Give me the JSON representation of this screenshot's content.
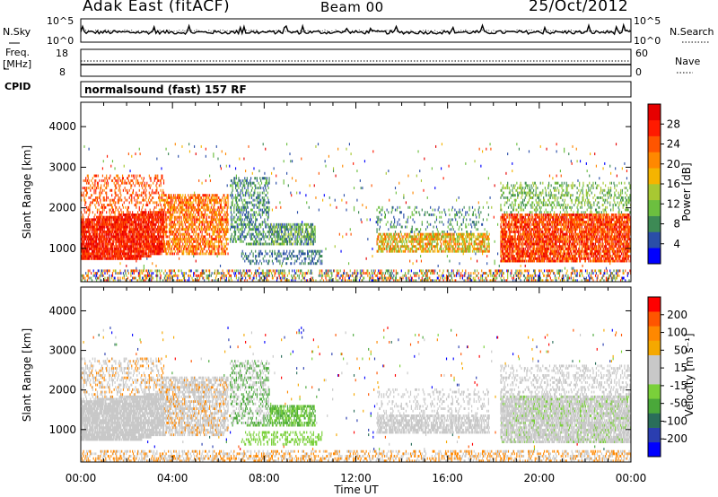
{
  "header": {
    "station": "Adak East (fitACF)",
    "beam": "Beam 00",
    "date": "25/Oct/2012"
  },
  "noise_panel": {
    "left_label": "N.Sky",
    "right_label": "N.Search",
    "left_ticks": [
      "10^5",
      "10^0"
    ],
    "right_ticks": [
      "10^5",
      "10^0"
    ]
  },
  "freq_panel": {
    "left_label_1": "Freq.",
    "left_label_2": "[MHz]",
    "right_label": "Nave",
    "left_ticks": [
      "18",
      "8"
    ],
    "right_ticks": [
      "60",
      "0"
    ]
  },
  "cpid_panel": {
    "label": "CPID",
    "text": "normalsound (fast) 157 RF"
  },
  "colors": {
    "power": [
      "#0000ff",
      "#2a4ea8",
      "#3d8a55",
      "#6cbf3f",
      "#a8c832",
      "#f5b400",
      "#ff8800",
      "#ff5500",
      "#ff1a00",
      "#e60000"
    ],
    "velocity": [
      "#ff0000",
      "#ff5500",
      "#ff8800",
      "#f5a800",
      "#c8c8c8",
      "#c8c8c8",
      "#7ad03a",
      "#4aa83a",
      "#2a6e5a",
      "#2a3eb0",
      "#0000ff"
    ],
    "groundscatter": "#c8c8c8"
  },
  "chart_data": [
    {
      "type": "heatmap",
      "title": "Power",
      "xlabel": "Time UT",
      "ylabel": "Slant Range [km]",
      "x_ticks": [
        "00:00",
        "04:00",
        "08:00",
        "12:00",
        "16:00",
        "20:00",
        "00:00"
      ],
      "xlim_hours": [
        0,
        24
      ],
      "y_ticks": [
        1000,
        2000,
        3000,
        4000
      ],
      "ylim_km": [
        180,
        4600
      ],
      "colorbar": {
        "label": "Power [dB]",
        "ticks": [
          "4",
          "8",
          "12",
          "16",
          "20",
          "24",
          "28"
        ],
        "range": [
          0,
          30
        ]
      },
      "series": [
        {
          "time_h": [
            0.0,
            3.5
          ],
          "range_km": [
            700,
            1700
          ],
          "value_db": 28
        },
        {
          "time_h": [
            3.5,
            6.5
          ],
          "range_km": [
            900,
            2400
          ],
          "value_db": 22
        },
        {
          "time_h": [
            7.0,
            10.0
          ],
          "range_km": [
            900,
            1600
          ],
          "value_db": 12
        },
        {
          "time_h": [
            13.0,
            17.5
          ],
          "range_km": [
            900,
            1300
          ],
          "value_db": 18
        },
        {
          "time_h": [
            18.5,
            24.0
          ],
          "range_km": [
            700,
            1800
          ],
          "value_db": 26
        }
      ]
    },
    {
      "type": "heatmap",
      "title": "Velocity",
      "xlabel": "Time UT",
      "ylabel": "Slant Range [km]",
      "x_ticks": [
        "00:00",
        "04:00",
        "08:00",
        "12:00",
        "16:00",
        "20:00",
        "00:00"
      ],
      "xlim_hours": [
        0,
        24
      ],
      "y_ticks": [
        1000,
        2000,
        3000,
        4000
      ],
      "ylim_km": [
        180,
        4600
      ],
      "colorbar": {
        "label": "Velocity [m s⁻¹]",
        "ticks": [
          "200",
          "100",
          "50",
          "15",
          "-15",
          "-50",
          "-100",
          "-200"
        ],
        "range": [
          -250,
          250
        ]
      },
      "series": [
        {
          "time_h": [
            0.0,
            6.5
          ],
          "range_km": [
            700,
            2400
          ],
          "value_ms": 0
        },
        {
          "time_h": [
            7.0,
            10.0
          ],
          "range_km": [
            700,
            1600
          ],
          "value_ms": 40
        },
        {
          "time_h": [
            13.0,
            18.0
          ],
          "range_km": [
            800,
            1300
          ],
          "value_ms": 0
        },
        {
          "time_h": [
            18.5,
            24.0
          ],
          "range_km": [
            700,
            1800
          ],
          "value_ms": 0
        }
      ]
    }
  ]
}
